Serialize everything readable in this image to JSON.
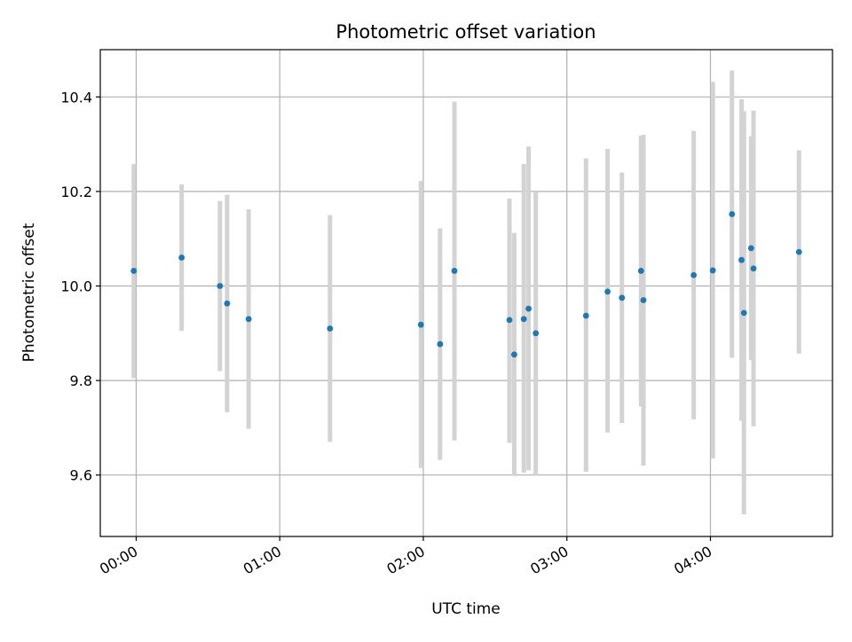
{
  "chart_data": {
    "type": "scatter",
    "title": "Photometric offset variation",
    "xlabel": "UTC time",
    "ylabel": "Photometric offset",
    "x_unit": "UTC time (hh:mm)",
    "xlim": [
      "23:45",
      "04:51"
    ],
    "ylim": [
      9.47,
      10.5
    ],
    "x_ticks": [
      "00:00",
      "01:00",
      "02:00",
      "03:00",
      "04:00"
    ],
    "y_ticks": [
      9.6,
      9.8,
      10.0,
      10.2,
      10.4
    ],
    "grid": true,
    "legend": "none",
    "colors": {
      "point": "#1f77b4",
      "errorbar": "#d3d3d3",
      "grid": "#b0b0b0",
      "axes": "#000000"
    },
    "points": [
      {
        "x": "23:59",
        "y": 10.032,
        "ymin": 9.805,
        "ymax": 10.258
      },
      {
        "x": "00:19",
        "y": 10.06,
        "ymin": 9.905,
        "ymax": 10.215
      },
      {
        "x": "00:35",
        "y": 10.0,
        "ymin": 9.82,
        "ymax": 10.18
      },
      {
        "x": "00:38",
        "y": 9.963,
        "ymin": 9.733,
        "ymax": 10.193
      },
      {
        "x": "00:47",
        "y": 9.93,
        "ymin": 9.698,
        "ymax": 10.162
      },
      {
        "x": "01:21",
        "y": 9.91,
        "ymin": 9.67,
        "ymax": 10.15
      },
      {
        "x": "01:59",
        "y": 9.918,
        "ymin": 9.615,
        "ymax": 10.222
      },
      {
        "x": "02:07",
        "y": 9.877,
        "ymin": 9.632,
        "ymax": 10.122
      },
      {
        "x": "02:13",
        "y": 10.032,
        "ymin": 9.673,
        "ymax": 10.39
      },
      {
        "x": "02:36",
        "y": 9.928,
        "ymin": 9.668,
        "ymax": 10.185
      },
      {
        "x": "02:38",
        "y": 9.855,
        "ymin": 9.598,
        "ymax": 10.112
      },
      {
        "x": "02:42",
        "y": 9.93,
        "ymin": 9.605,
        "ymax": 10.258
      },
      {
        "x": "02:44",
        "y": 9.952,
        "ymin": 9.61,
        "ymax": 10.295
      },
      {
        "x": "02:47",
        "y": 9.9,
        "ymin": 9.6,
        "ymax": 10.2
      },
      {
        "x": "03:08",
        "y": 9.937,
        "ymin": 9.607,
        "ymax": 10.27
      },
      {
        "x": "03:17",
        "y": 9.988,
        "ymin": 9.69,
        "ymax": 10.29
      },
      {
        "x": "03:23",
        "y": 9.975,
        "ymin": 9.71,
        "ymax": 10.24
      },
      {
        "x": "03:31",
        "y": 10.032,
        "ymin": 9.745,
        "ymax": 10.318
      },
      {
        "x": "03:32",
        "y": 9.97,
        "ymin": 9.62,
        "ymax": 10.32
      },
      {
        "x": "03:53",
        "y": 10.023,
        "ymin": 9.718,
        "ymax": 10.328
      },
      {
        "x": "04:01",
        "y": 10.033,
        "ymin": 9.635,
        "ymax": 10.432
      },
      {
        "x": "04:09",
        "y": 10.152,
        "ymin": 9.848,
        "ymax": 10.456
      },
      {
        "x": "04:13",
        "y": 10.055,
        "ymin": 9.715,
        "ymax": 10.395
      },
      {
        "x": "04:14",
        "y": 9.943,
        "ymin": 9.517,
        "ymax": 10.37
      },
      {
        "x": "04:17",
        "y": 10.08,
        "ymin": 9.843,
        "ymax": 10.317
      },
      {
        "x": "04:18",
        "y": 10.037,
        "ymin": 9.703,
        "ymax": 10.371
      },
      {
        "x": "04:37",
        "y": 10.072,
        "ymin": 9.857,
        "ymax": 10.287
      }
    ]
  }
}
